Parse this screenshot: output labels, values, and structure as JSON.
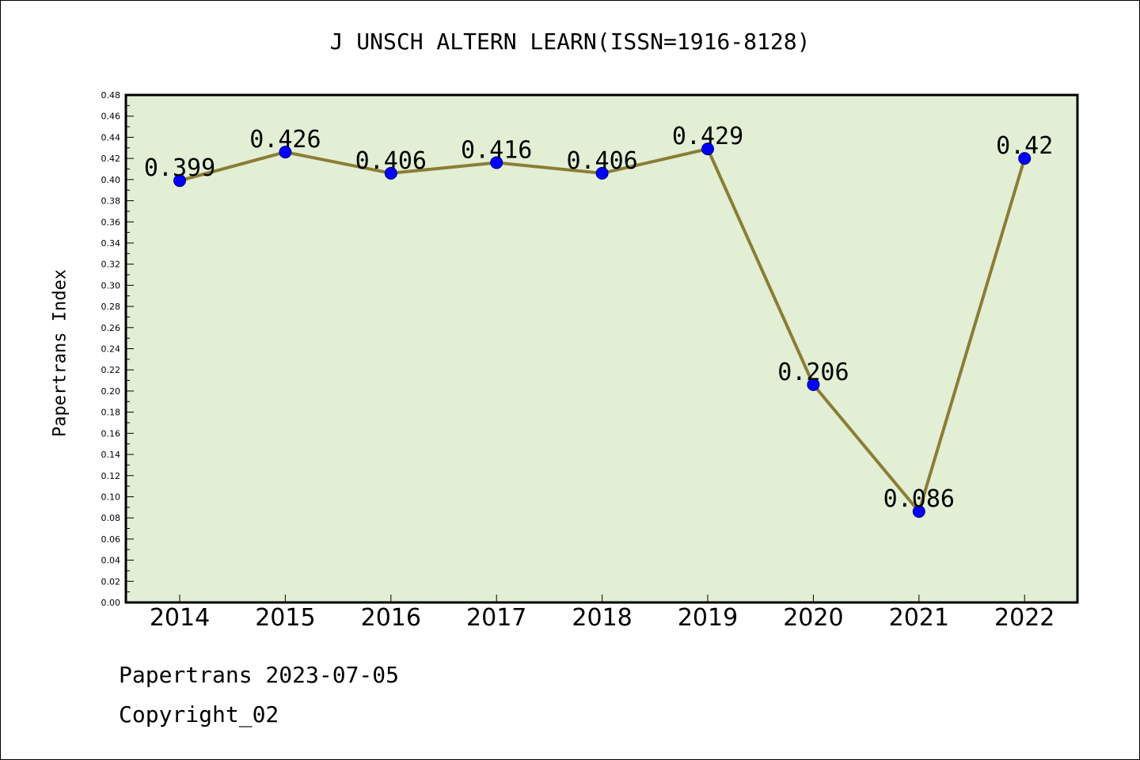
{
  "chart_data": {
    "type": "line",
    "title": "J UNSCH ALTERN LEARN(ISSN=1916-8128)",
    "xlabel": "",
    "ylabel": "Papertrans Index",
    "categories": [
      "2014",
      "2015",
      "2016",
      "2017",
      "2018",
      "2019",
      "2020",
      "2021",
      "2022"
    ],
    "values": [
      0.399,
      0.426,
      0.406,
      0.416,
      0.406,
      0.429,
      0.206,
      0.086,
      0.42
    ],
    "data_labels": [
      "0.399",
      "0.426",
      "0.406",
      "0.416",
      "0.406",
      "0.429",
      "0.206",
      "0.086",
      "0.42"
    ],
    "ylim": [
      0,
      0.48
    ],
    "yticks": [
      "0.00",
      "0.02",
      "0.04",
      "0.06",
      "0.08",
      "0.10",
      "0.12",
      "0.14",
      "0.16",
      "0.18",
      "0.20",
      "0.22",
      "0.24",
      "0.26",
      "0.28",
      "0.30",
      "0.32",
      "0.34",
      "0.36",
      "0.38",
      "0.40",
      "0.42",
      "0.44",
      "0.46",
      "0.48"
    ],
    "grid": false,
    "legend": "none",
    "colors": {
      "plot_background": "#e2efd5",
      "line": "#8b7d36",
      "marker": "#0000ff"
    }
  },
  "footer": {
    "date_line": "Papertrans 2023-07-05",
    "copyright": "Copyright_02"
  }
}
